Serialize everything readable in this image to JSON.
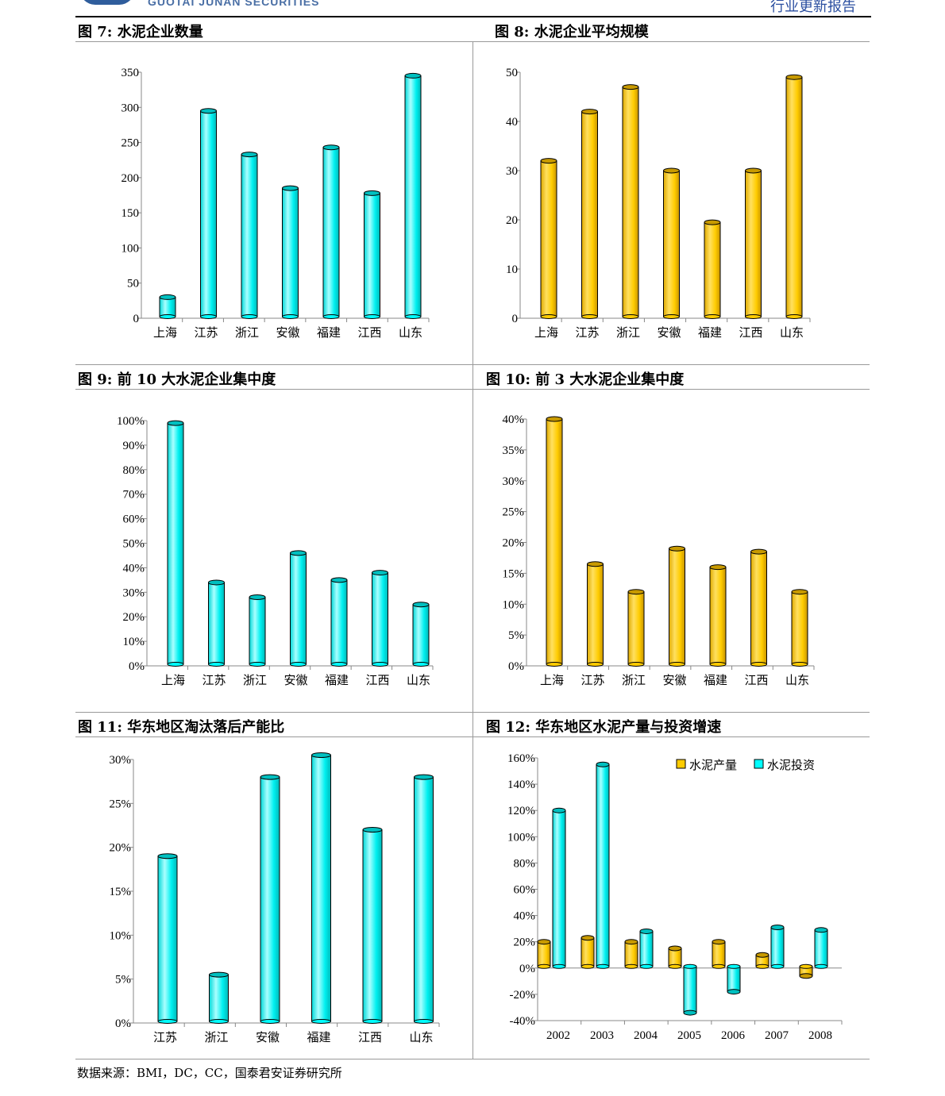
{
  "header": {
    "brand": "GUOTAI JUNAN SECURITIES",
    "report_type": "行业更新报告"
  },
  "titles": {
    "fig7": "图 7: 水泥企业数量",
    "fig8": "图 8: 水泥企业平均规模",
    "fig9": "图 9: 前 10 大水泥企业集中度",
    "fig10": "图 10: 前 3 大水泥企业集中度",
    "fig11": "图 11: 华东地区淘汰落后产能比",
    "fig12": "图 12: 华东地区水泥产量与投资增速"
  },
  "source": "数据来源：BMI，DC，CC，国泰君安证券研究所",
  "colors": {
    "cyan": "#00FFFF",
    "gold": "#FFCC00"
  },
  "chart_data": [
    {
      "id": "fig7",
      "type": "bar",
      "categories": [
        "上海",
        "江苏",
        "浙江",
        "安徽",
        "福建",
        "江西",
        "山东"
      ],
      "values": [
        30,
        295,
        233,
        185,
        243,
        178,
        345
      ],
      "ylim": [
        0,
        350
      ],
      "ticks": [
        "0",
        "50",
        "100",
        "150",
        "200",
        "250",
        "300",
        "350"
      ],
      "color": "cyan",
      "grid": false
    },
    {
      "id": "fig8",
      "type": "bar",
      "categories": [
        "上海",
        "江苏",
        "浙江",
        "安徽",
        "福建",
        "江西",
        "山东"
      ],
      "values": [
        32,
        42,
        47,
        30,
        19.5,
        30,
        49
      ],
      "ylim": [
        0,
        50
      ],
      "ticks": [
        "0",
        "10",
        "20",
        "30",
        "40",
        "50"
      ],
      "color": "gold",
      "grid": false
    },
    {
      "id": "fig9",
      "type": "bar",
      "categories": [
        "上海",
        "江苏",
        "浙江",
        "安徽",
        "福建",
        "江西",
        "山东"
      ],
      "values": [
        99,
        34,
        28,
        46,
        35,
        38,
        25
      ],
      "ylim": [
        0,
        100
      ],
      "ticks": [
        "0%",
        "10%",
        "20%",
        "30%",
        "40%",
        "50%",
        "60%",
        "70%",
        "80%",
        "90%",
        "100%"
      ],
      "color": "cyan",
      "grid": false
    },
    {
      "id": "fig10",
      "type": "bar",
      "categories": [
        "上海",
        "江苏",
        "浙江",
        "安徽",
        "福建",
        "江西",
        "山东"
      ],
      "values": [
        40,
        16.5,
        12,
        19,
        16,
        18.5,
        12
      ],
      "ylim": [
        0,
        40
      ],
      "ticks": [
        "0%",
        "5%",
        "10%",
        "15%",
        "20%",
        "25%",
        "30%",
        "35%",
        "40%"
      ],
      "color": "gold",
      "grid": false
    },
    {
      "id": "fig11",
      "type": "bar",
      "categories": [
        "江苏",
        "浙江",
        "安徽",
        "福建",
        "江西",
        "山东"
      ],
      "values": [
        19,
        5.5,
        28,
        30.5,
        22,
        28
      ],
      "ylim": [
        0,
        30
      ],
      "ticks": [
        "0%",
        "5%",
        "10%",
        "15%",
        "20%",
        "25%",
        "30%"
      ],
      "color": "cyan",
      "grid": false
    },
    {
      "id": "fig12",
      "type": "bar",
      "categories": [
        "2002",
        "2003",
        "2004",
        "2005",
        "2006",
        "2007",
        "2008"
      ],
      "series": [
        {
          "name": "水泥产量",
          "values": [
            20,
            23,
            20,
            15,
            20,
            10,
            -6
          ],
          "color": "gold"
        },
        {
          "name": "水泥投资",
          "values": [
            120,
            155,
            28,
            -34,
            -18,
            31,
            29
          ],
          "color": "cyan"
        }
      ],
      "ylim": [
        -40,
        160
      ],
      "ticks": [
        "-40%",
        "-20%",
        "0%",
        "20%",
        "40%",
        "60%",
        "80%",
        "100%",
        "120%",
        "140%",
        "160%"
      ],
      "legend": "top-right",
      "grid": false
    }
  ]
}
